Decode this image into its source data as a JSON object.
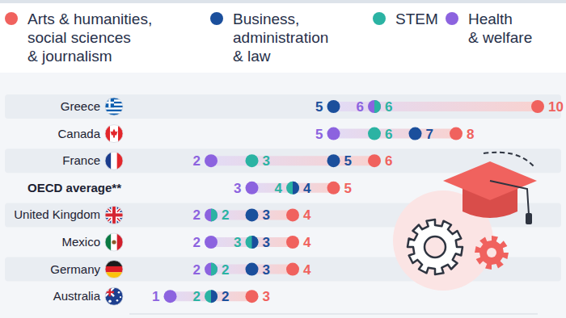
{
  "chart_data": {
    "type": "dot",
    "orientation": "horizontal",
    "categories": [
      "Greece",
      "Canada",
      "France",
      "OECD average**",
      "United Kingdom",
      "Mexico",
      "Germany",
      "Australia"
    ],
    "series": [
      {
        "name": "Arts & humanities, social sciences & journalism",
        "color": "#f0625e",
        "values": [
          10,
          8,
          6,
          5,
          4,
          4,
          4,
          3
        ]
      },
      {
        "name": "Business, administration & law",
        "color": "#1b4f9c",
        "values": [
          5,
          7,
          5,
          4,
          3,
          3,
          3,
          2
        ]
      },
      {
        "name": "STEM",
        "color": "#2bb3a3",
        "values": [
          6,
          6,
          3,
          4,
          2,
          3,
          2,
          2
        ]
      },
      {
        "name": "Health & welfare",
        "color": "#8c63df",
        "values": [
          6,
          5,
          2,
          3,
          2,
          2,
          2,
          1
        ]
      }
    ],
    "xlim": [
      0,
      10
    ],
    "tick_labels": false,
    "data_labels": true,
    "legend": "top"
  }
}
